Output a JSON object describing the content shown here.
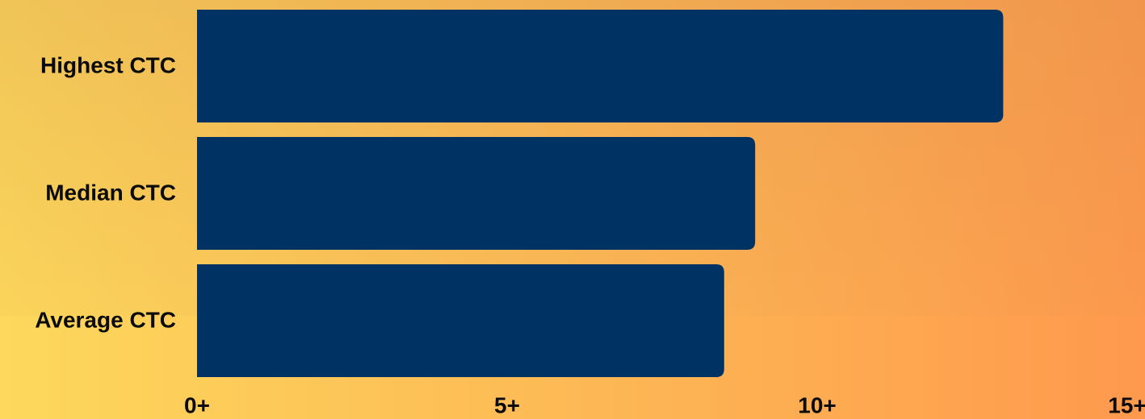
{
  "chart_data": {
    "type": "bar",
    "orientation": "horizontal",
    "categories": [
      "Highest CTC",
      "Median CTC",
      "Average CTC"
    ],
    "values": [
      13,
      9,
      8.5
    ],
    "color": "#003263",
    "xlim": [
      0,
      15
    ],
    "xticks": [
      {
        "value": 0,
        "label": "0+"
      },
      {
        "value": 5,
        "label": "5+"
      },
      {
        "value": 10,
        "label": "10+"
      },
      {
        "value": 15,
        "label": "15+"
      }
    ],
    "grid": false
  }
}
